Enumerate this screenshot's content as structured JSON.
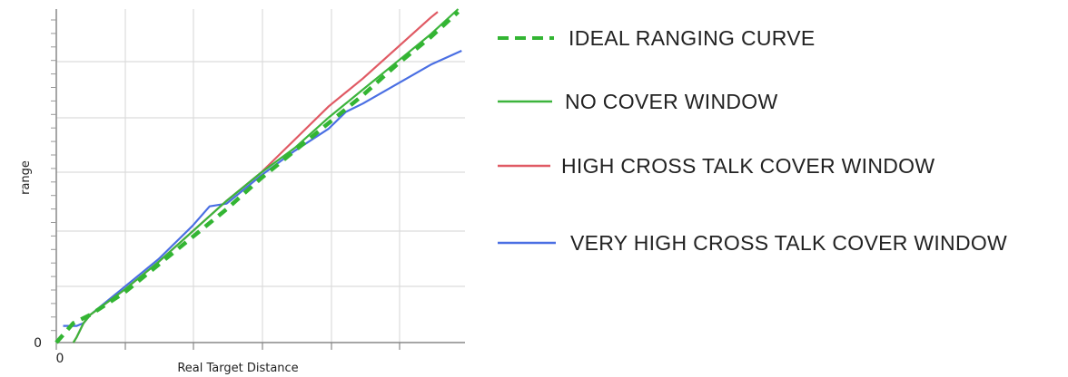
{
  "chart_data": {
    "type": "line",
    "title": "",
    "xlabel": "Real Target Distance",
    "ylabel": "range",
    "x_tick_labels": [
      "0"
    ],
    "y_tick_labels": [
      "0"
    ],
    "xlim": [
      0,
      12
    ],
    "ylim": [
      0,
      12
    ],
    "grid": true,
    "legend_position": "right",
    "series": [
      {
        "name": "IDEAL RANGING CURVE",
        "color": "#33b533",
        "dash": "dashed",
        "x": [
          0,
          0.5,
          1.0,
          2,
          3,
          4,
          5,
          6,
          7,
          8,
          9,
          10,
          11,
          11.8
        ],
        "y": [
          0,
          0.7,
          1.0,
          1.8,
          2.8,
          3.8,
          4.8,
          5.9,
          6.9,
          7.9,
          8.9,
          10.0,
          11.0,
          11.9
        ]
      },
      {
        "name": "NO COVER WINDOW",
        "color": "#3cb43c",
        "dash": "solid",
        "x": [
          0.5,
          0.6,
          0.8,
          1.0,
          2,
          3,
          4,
          5,
          6,
          7,
          8,
          9,
          10,
          11,
          11.8
        ],
        "y": [
          0,
          0.2,
          0.7,
          1.0,
          1.9,
          2.9,
          4.0,
          5.1,
          6.1,
          7.0,
          8.1,
          9.1,
          10.1,
          11.1,
          12.0
        ]
      },
      {
        "name": "HIGH CROSS TALK COVER WINDOW",
        "color": "#e05a64",
        "dash": "solid",
        "x": [
          0.5,
          0.6,
          0.8,
          1.0,
          2,
          3,
          4,
          5,
          6,
          7,
          8,
          9,
          10,
          11,
          11.2
        ],
        "y": [
          0,
          0.2,
          0.7,
          1.0,
          1.9,
          2.9,
          4.0,
          5.1,
          6.1,
          7.3,
          8.5,
          9.5,
          10.6,
          11.7,
          11.9
        ]
      },
      {
        "name": "VERY HIGH CROSS TALK COVER WINDOW",
        "color": "#4a6fe3",
        "dash": "solid",
        "x": [
          0.2,
          0.6,
          0.8,
          1.0,
          2,
          3,
          4,
          4.5,
          5,
          6,
          7,
          8,
          8.5,
          9,
          10,
          11,
          11.9
        ],
        "y": [
          0.6,
          0.6,
          0.7,
          1.0,
          2.0,
          3.0,
          4.2,
          4.9,
          5.0,
          6.0,
          6.9,
          7.7,
          8.3,
          8.6,
          9.3,
          10.0,
          10.5
        ]
      }
    ]
  }
}
